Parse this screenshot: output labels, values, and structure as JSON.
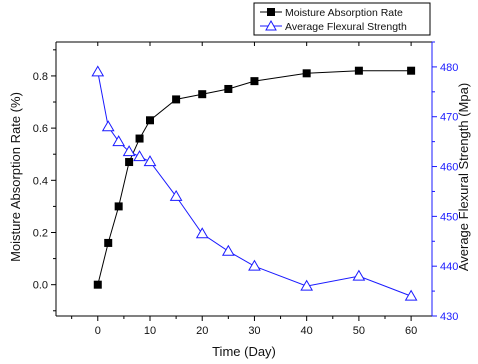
{
  "chart_data": {
    "type": "line",
    "xlabel": "Time (Day)",
    "ylabel_left": "Moisture Absorption Rate (%)",
    "ylabel_right": "Average Flexural Strength (Mpa)",
    "xlim": [
      -8,
      64
    ],
    "ylim_left": [
      -0.12,
      0.93
    ],
    "ylim_right": [
      430,
      485
    ],
    "x_ticks": [
      0,
      10,
      20,
      30,
      40,
      50,
      60
    ],
    "y_left_ticks": [
      0.0,
      0.2,
      0.4,
      0.6,
      0.8
    ],
    "y_right_ticks": [
      430,
      440,
      450,
      460,
      470,
      480
    ],
    "legend_position": "top-right",
    "series": [
      {
        "name": "Moisture Absorption Rate",
        "axis": "left",
        "marker": "filled-square",
        "color": "#000000",
        "x": [
          0,
          2,
          4,
          6,
          8,
          10,
          15,
          20,
          25,
          30,
          40,
          50,
          60
        ],
        "y": [
          0.0,
          0.16,
          0.3,
          0.47,
          0.56,
          0.63,
          0.71,
          0.73,
          0.75,
          0.78,
          0.81,
          0.82,
          0.82
        ]
      },
      {
        "name": "Average Flexural Strength",
        "axis": "right",
        "marker": "open-triangle",
        "color": "#1a1aff",
        "x": [
          0,
          2,
          4,
          6,
          8,
          10,
          15,
          20,
          25,
          30,
          40,
          50,
          60
        ],
        "y": [
          479,
          468,
          465,
          463,
          462,
          461,
          454,
          446.5,
          443,
          440,
          436,
          438,
          434
        ]
      }
    ]
  }
}
